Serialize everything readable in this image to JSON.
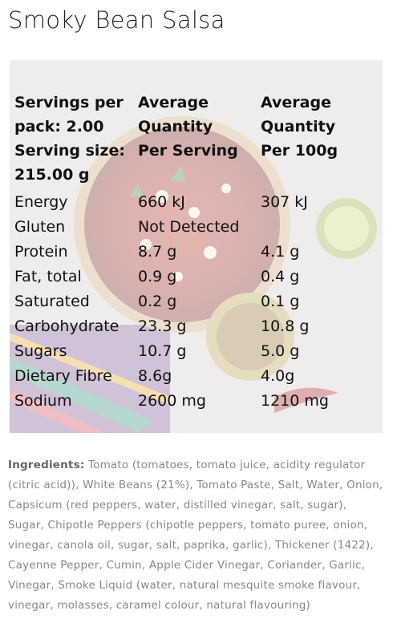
{
  "title": "Smoky Bean Salsa",
  "nutrition": {
    "header": {
      "col1_lines": [
        "Servings per",
        "pack: 2.00",
        "Serving size:",
        "215.00 g"
      ],
      "col2_lines": [
        "Average",
        "Quantity",
        "Per Serving"
      ],
      "col3_lines": [
        "Average",
        "Quantity",
        "Per 100g"
      ]
    },
    "rows": [
      {
        "name": "Energy",
        "per_serving": "660 kJ",
        "per_100g": "307 kJ"
      },
      {
        "name": "Gluten",
        "per_serving": "Not Detected",
        "per_100g": ""
      },
      {
        "name": "Protein",
        "per_serving": "8.7 g",
        "per_100g": "4.1 g"
      },
      {
        "name": "Fat, total",
        "per_serving": "0.9 g",
        "per_100g": "0.4 g"
      },
      {
        "name": "Saturated",
        "per_serving": "0.2 g",
        "per_100g": "0.1 g"
      },
      {
        "name": "Carbohydrate",
        "per_serving": "23.3 g",
        "per_100g": "10.8 g"
      },
      {
        "name": "Sugars",
        "per_serving": "10.7 g",
        "per_100g": "5.0 g"
      },
      {
        "name": "Dietary Fibre",
        "per_serving": "8.6g",
        "per_100g": "4.0g"
      },
      {
        "name": "Sodium",
        "per_serving": "2600 mg",
        "per_100g": "1210 mg"
      }
    ]
  },
  "ingredients": {
    "label": "Ingredients:",
    "text": " Tomato (tomatoes, tomato juice, acidity regulator (citric acid)), White Beans (21%), Tomato Paste, Salt, Water, Onion, Capsicum (red peppers, water, distilled vinegar, salt, sugar), Sugar, Chipotle Peppers (chipotle peppers, tomato puree, onion, vinegar, canola oil, sugar, salt, paprika, garlic), Thickener (1422), Cayenne Pepper, Cumin, Apple Cider Vinegar, Coriander, Garlic, Vinegar, Smoke Liquid (water, natural mesquite smoke flavour, vinegar, molasses, caramel colour, natural flavouring)"
  }
}
